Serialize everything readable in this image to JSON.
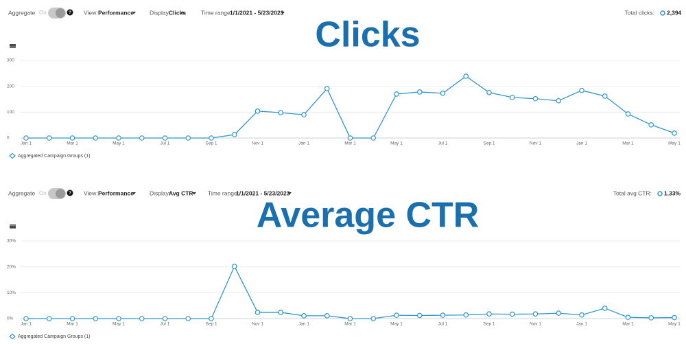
{
  "toolbars": [
    {
      "aggregate": "Aggregate",
      "toggle": "On",
      "help": "?",
      "view_label": "View:",
      "view": "Performance",
      "display_label": "Display:",
      "display": "Clicks",
      "range_label": "Time range:",
      "range": "1/1/2021 - 5/23/2023",
      "total_label": "Total clicks:",
      "total": "2,394"
    },
    {
      "aggregate": "Aggregate",
      "toggle": "On",
      "help": "?",
      "view_label": "View:",
      "view": "Performance",
      "display_label": "Display:",
      "display": "Avg CTR",
      "range_label": "Time range:",
      "range": "1/1/2021 - 5/23/2023",
      "total_label": "Total avg CTR:",
      "total": "1.33%"
    }
  ],
  "chart_data": [
    {
      "type": "line",
      "title": "Clicks",
      "categories": [
        "Jan 1",
        null,
        "Mar 1",
        null,
        "May 1",
        null,
        "Jul 1",
        null,
        "Sep 1",
        null,
        "Nov 1",
        null,
        "Jan 1",
        null,
        "Mar 1",
        null,
        "May 1",
        null,
        "Jul 1",
        null,
        "Sep 1",
        null,
        "Nov 1",
        null,
        "Jan 1",
        null,
        "Mar 1",
        null,
        "May 1"
      ],
      "series": [
        {
          "name": "Aggregated Campaign Groups (1)",
          "color": "#2f95d0",
          "values": [
            0,
            0,
            0,
            0,
            0,
            0,
            0,
            0,
            0,
            13,
            104,
            98,
            90,
            191,
            0,
            0,
            170,
            178,
            173,
            239,
            176,
            157,
            152,
            144,
            184,
            162,
            93,
            51,
            19
          ]
        }
      ],
      "ylim": [
        0,
        300
      ],
      "yticks": [
        0,
        100,
        200,
        300
      ],
      "grid": true
    },
    {
      "type": "line",
      "title": "Average CTR",
      "categories": [
        "Jan 1",
        null,
        "Mar 1",
        null,
        "May 1",
        null,
        "Jul 1",
        null,
        "Sep 1",
        null,
        "Nov 1",
        null,
        "Jan 1",
        null,
        "Mar 1",
        null,
        "May 1",
        null,
        "Jul 1",
        null,
        "Sep 1",
        null,
        "Nov 1",
        null,
        "Jan 1",
        null,
        "Mar 1",
        null,
        "May 1"
      ],
      "series": [
        {
          "name": "Aggregated Campaign Groups (1)",
          "color": "#2f95d0",
          "values": [
            0,
            0,
            0,
            0,
            0,
            0,
            0,
            0,
            0,
            20.2,
            2.4,
            2.4,
            1.1,
            1.1,
            0,
            0,
            1.3,
            1.2,
            1.3,
            1.4,
            1.8,
            1.7,
            1.8,
            2.1,
            1.4,
            4.0,
            0.5,
            0.3,
            0.4
          ]
        }
      ],
      "ylim": [
        0,
        30
      ],
      "yticks": [
        {
          "value": 0,
          "label": "0%"
        },
        {
          "value": 10,
          "label": "10%"
        },
        {
          "value": 20,
          "label": "20%"
        },
        {
          "value": 30,
          "label": "30%"
        }
      ],
      "grid": true
    }
  ]
}
